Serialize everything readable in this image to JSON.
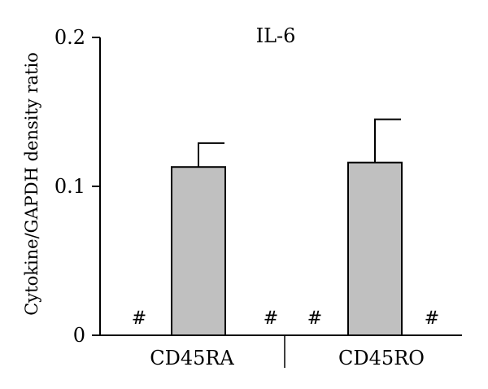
{
  "chart_data": {
    "type": "bar",
    "title": "IL-6",
    "ylabel": "Cytokine/GAPDH density ratio",
    "xlabel": "",
    "ylim": [
      0,
      0.2
    ],
    "yticks": [
      "0",
      "0.1",
      "0.2"
    ],
    "groups": [
      "CD45RA",
      "CD45RO"
    ],
    "bars": [
      {
        "group": "CD45RA",
        "value": null,
        "label": "#"
      },
      {
        "group": "CD45RA",
        "value": 0.113,
        "error": 0.016
      },
      {
        "group": "CD45RA",
        "value": null,
        "label": "#"
      },
      {
        "group": "CD45RO",
        "value": null,
        "label": "#"
      },
      {
        "group": "CD45RO",
        "value": 0.116,
        "error": 0.029
      },
      {
        "group": "CD45RO",
        "value": null,
        "label": "#"
      }
    ],
    "bar_color": "#c0c0c0",
    "legend": "none",
    "grid": false
  }
}
